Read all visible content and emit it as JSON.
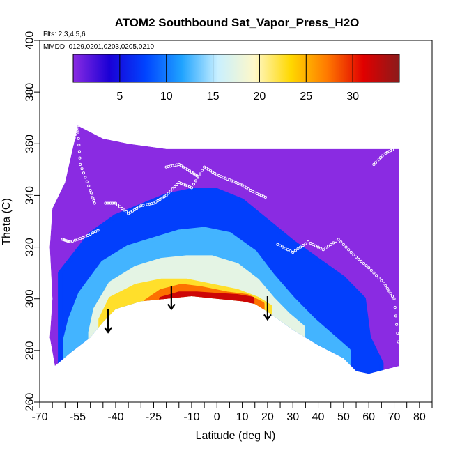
{
  "chart_data": {
    "type": "heatmap",
    "title": "ATOM2 Southbound Sat_Vapor_Press_H2O",
    "flights_note": "Flts: 2,3,4,5,6",
    "dates_note": "MMDD: 0129,0201,0203,0205,0210",
    "xlabel": "Latitude (deg N)",
    "ylabel": "Theta (C)",
    "xlim": [
      -70,
      85
    ],
    "ylim": [
      260,
      400
    ],
    "x_ticks": [
      -70,
      -55,
      -40,
      -25,
      -10,
      0,
      10,
      20,
      30,
      40,
      50,
      60,
      70,
      80
    ],
    "x_tick_labels": [
      "-70",
      "-55",
      "-40",
      "-25",
      "-10",
      "0",
      "10",
      "20",
      "30",
      "40",
      "50",
      "60",
      "70",
      "80"
    ],
    "x_minor_ticks": [
      -65,
      -60,
      -50,
      -45,
      -35,
      -30,
      -20,
      -15,
      -5,
      5,
      15,
      25,
      35,
      45,
      55,
      65,
      75,
      85
    ],
    "y_ticks": [
      260,
      280,
      300,
      320,
      340,
      360,
      380,
      400
    ],
    "y_tick_labels": [
      "260",
      "280",
      "300",
      "320",
      "340",
      "360",
      "380",
      "400"
    ],
    "colorbar": {
      "range": [
        0,
        35
      ],
      "ticks": [
        5,
        10,
        15,
        20,
        25,
        30
      ],
      "tick_labels": [
        "5",
        "10",
        "15",
        "20",
        "25",
        "30"
      ],
      "colors": [
        "#8a2be2",
        "#1a00d6",
        "#0044ff",
        "#1fa3ff",
        "#c9f0ff",
        "#fff8c8",
        "#ffd800",
        "#ff7a00",
        "#e10000",
        "#8b1a1a"
      ]
    },
    "coverage_top": [
      [
        -57,
        358
      ],
      [
        -55,
        367
      ],
      [
        -45,
        362
      ],
      [
        -35,
        360
      ],
      [
        -20,
        358
      ],
      [
        0,
        358
      ],
      [
        20,
        358
      ],
      [
        40,
        358
      ],
      [
        60,
        358
      ],
      [
        70,
        358
      ],
      [
        72,
        358
      ]
    ],
    "coverage_bottom": [
      [
        -64,
        274
      ],
      [
        -58,
        279
      ],
      [
        -50,
        285
      ],
      [
        -45,
        291
      ],
      [
        -40,
        296
      ],
      [
        -30,
        299
      ],
      [
        -20,
        300
      ],
      [
        -10,
        301
      ],
      [
        0,
        300
      ],
      [
        10,
        299
      ],
      [
        15,
        298
      ],
      [
        20,
        295
      ],
      [
        30,
        288
      ],
      [
        40,
        282
      ],
      [
        50,
        277
      ],
      [
        55,
        272
      ],
      [
        60,
        271
      ],
      [
        72,
        274
      ]
    ],
    "coverage_left": [
      [
        -64,
        274
      ],
      [
        -66,
        285
      ],
      [
        -65,
        300
      ],
      [
        -66,
        320
      ],
      [
        -65,
        335
      ],
      [
        -60,
        345
      ],
      [
        -57,
        358
      ]
    ],
    "contours": [
      {
        "value": 5,
        "points": [
          [
            -62,
            310
          ],
          [
            -58,
            315
          ],
          [
            -50,
            325
          ],
          [
            -40,
            332
          ],
          [
            -30,
            336
          ],
          [
            -20,
            340
          ],
          [
            -10,
            342
          ],
          [
            0,
            342
          ],
          [
            10,
            338
          ],
          [
            20,
            330
          ],
          [
            30,
            322
          ],
          [
            40,
            315
          ],
          [
            50,
            308
          ],
          [
            58,
            300
          ],
          [
            60,
            285
          ],
          [
            65,
            275
          ]
        ]
      },
      {
        "value": 10,
        "points": [
          [
            -60,
            284
          ],
          [
            -58,
            292
          ],
          [
            -54,
            302
          ],
          [
            -45,
            314
          ],
          [
            -35,
            320
          ],
          [
            -25,
            323
          ],
          [
            -15,
            326
          ],
          [
            -5,
            327
          ],
          [
            5,
            325
          ],
          [
            15,
            318
          ],
          [
            22,
            309
          ],
          [
            30,
            300
          ],
          [
            38,
            292
          ],
          [
            45,
            286
          ],
          [
            52,
            280
          ]
        ]
      },
      {
        "value": 15,
        "points": [
          [
            -50,
            287
          ],
          [
            -48,
            296
          ],
          [
            -42,
            306
          ],
          [
            -32,
            312
          ],
          [
            -22,
            315
          ],
          [
            -12,
            316
          ],
          [
            -2,
            316
          ],
          [
            8,
            313
          ],
          [
            16,
            307
          ],
          [
            22,
            300
          ],
          [
            28,
            294
          ],
          [
            34,
            289
          ]
        ]
      },
      {
        "value": 20,
        "points": [
          [
            -46,
            292
          ],
          [
            -42,
            300
          ],
          [
            -32,
            305
          ],
          [
            -22,
            307
          ],
          [
            -12,
            307
          ],
          [
            -2,
            305
          ],
          [
            8,
            303
          ],
          [
            16,
            300
          ],
          [
            21,
            297
          ]
        ]
      },
      {
        "value": 25,
        "points": [
          [
            -28,
            299
          ],
          [
            -22,
            303
          ],
          [
            -14,
            305
          ],
          [
            -6,
            304
          ],
          [
            4,
            302
          ],
          [
            12,
            301
          ],
          [
            18,
            298
          ]
        ]
      },
      {
        "value": 30,
        "points": [
          [
            -22,
            300
          ],
          [
            -15,
            302
          ],
          [
            -8,
            302
          ],
          [
            0,
            301.5
          ],
          [
            8,
            301
          ],
          [
            14,
            300
          ]
        ]
      }
    ],
    "flight_tracks": [
      [
        [
          -57,
          360
        ],
        [
          -55,
          367
        ],
        [
          -54,
          352
        ],
        [
          -50,
          342
        ],
        [
          -48,
          336
        ]
      ],
      [
        [
          -61,
          323
        ],
        [
          -58,
          322
        ],
        [
          -52,
          324
        ],
        [
          -46,
          327
        ]
      ],
      [
        [
          -44,
          337
        ],
        [
          -40,
          337
        ],
        [
          -35,
          333
        ],
        [
          -30,
          336
        ],
        [
          -25,
          337
        ],
        [
          -20,
          340
        ],
        [
          -15,
          345
        ],
        [
          -10,
          343
        ],
        [
          -5,
          351
        ],
        [
          0,
          348
        ],
        [
          5,
          346
        ],
        [
          10,
          344
        ],
        [
          15,
          341
        ],
        [
          20,
          339
        ]
      ],
      [
        [
          -20,
          351
        ],
        [
          -15,
          352
        ],
        [
          -10,
          349
        ],
        [
          -7,
          347
        ]
      ],
      [
        [
          24,
          321
        ],
        [
          30,
          318
        ],
        [
          36,
          322
        ],
        [
          42,
          319
        ],
        [
          48,
          323
        ],
        [
          54,
          317
        ],
        [
          60,
          312
        ],
        [
          66,
          306
        ],
        [
          70,
          300
        ],
        [
          72,
          280
        ]
      ],
      [
        [
          62,
          352
        ],
        [
          66,
          356
        ],
        [
          70,
          358
        ]
      ]
    ],
    "arrows": [
      [
        -43,
        295
      ],
      [
        -18,
        304
      ],
      [
        20,
        300
      ]
    ]
  }
}
